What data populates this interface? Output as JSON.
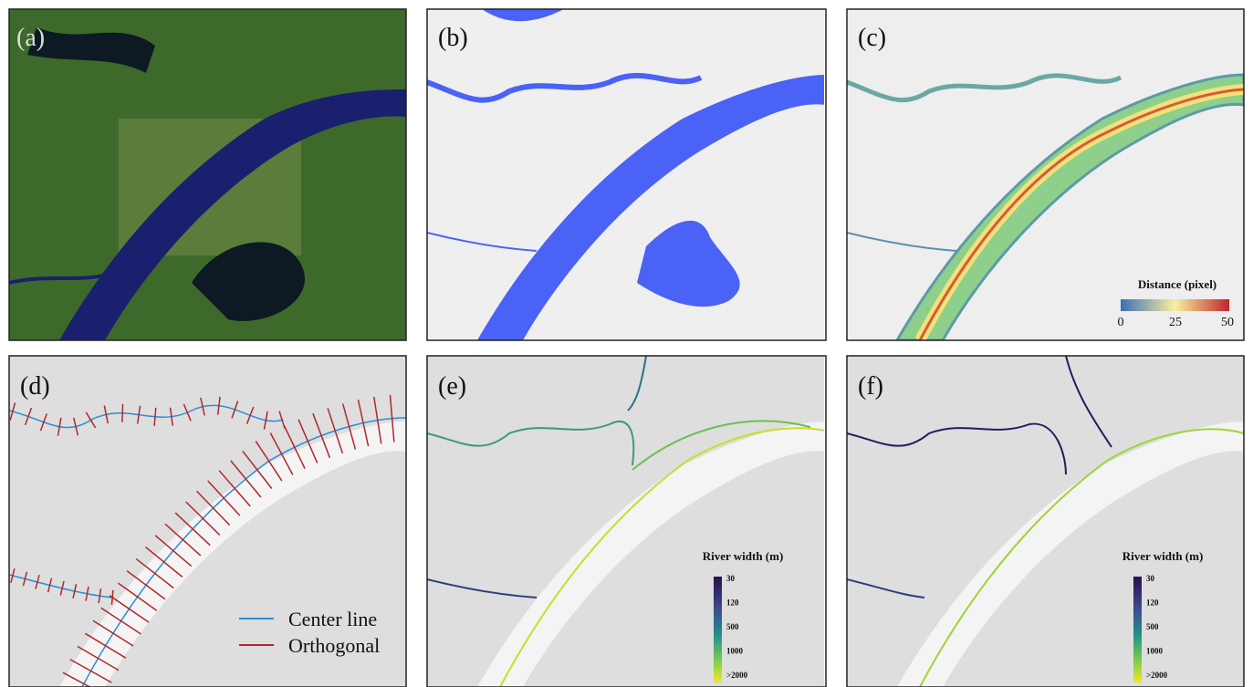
{
  "panels": [
    {
      "label": "(a)"
    },
    {
      "label": "(b)"
    },
    {
      "label": "(c)"
    },
    {
      "label": "(d)"
    },
    {
      "label": "(e)"
    },
    {
      "label": "(f)"
    }
  ],
  "distance_legend": {
    "title": "Distance (pixel)",
    "ticks": [
      "0",
      "25",
      "50"
    ]
  },
  "line_legend": {
    "items": [
      "Center line",
      "Orthogonal"
    ]
  },
  "width_legends": [
    {
      "title": "River width (m)",
      "ticks": [
        "30",
        "120",
        "500",
        "1000",
        ">2000"
      ]
    },
    {
      "title": "River width (m)",
      "ticks": [
        "30",
        "120",
        "500",
        "1000",
        ">2000"
      ]
    }
  ]
}
